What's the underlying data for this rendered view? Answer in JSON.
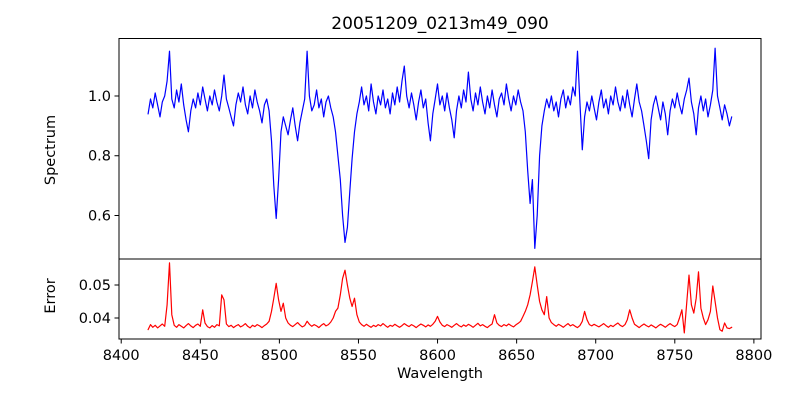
{
  "chart_data": {
    "type": "line",
    "title": "20051209_0213m49_090",
    "xlabel": "Wavelength",
    "xlim": [
      8398.6,
      8804.5
    ],
    "x_start": 8417,
    "x_step": 1.5,
    "xticks": {
      "values": [
        8400,
        8450,
        8500,
        8550,
        8600,
        8650,
        8700,
        8750,
        8800
      ],
      "labels": [
        "8400",
        "8450",
        "8500",
        "8550",
        "8600",
        "8650",
        "8700",
        "8750",
        "8800"
      ]
    },
    "grid": false,
    "legend": "none",
    "panels": [
      {
        "name": "spectrum",
        "ylabel": "Spectrum",
        "color": "#0000ff",
        "ylim": [
          0.4544,
          1.1924
        ],
        "yticks": {
          "values": [
            0.6,
            0.8,
            1.0
          ],
          "labels": [
            "0.6",
            "0.8",
            "1.0"
          ]
        },
        "features": "absorption lines near 8498, 8542, 8662; continuum ~1.0",
        "values": [
          0.94,
          0.99,
          0.96,
          1.01,
          0.97,
          0.93,
          0.98,
          1.0,
          1.05,
          1.15,
          0.99,
          0.96,
          1.02,
          0.98,
          1.04,
          0.97,
          0.92,
          0.88,
          0.95,
          0.99,
          0.96,
          1.01,
          0.97,
          1.03,
          0.99,
          0.95,
          1.0,
          0.97,
          1.02,
          0.98,
          0.95,
          1.0,
          1.07,
          0.99,
          0.96,
          0.93,
          0.9,
          0.97,
          1.01,
          0.98,
          1.03,
          0.97,
          0.94,
          1.0,
          0.96,
          1.02,
          0.98,
          0.95,
          0.91,
          0.97,
          0.99,
          0.95,
          0.85,
          0.7,
          0.59,
          0.72,
          0.88,
          0.93,
          0.9,
          0.87,
          0.92,
          0.96,
          0.9,
          0.85,
          0.91,
          0.95,
          0.99,
          1.15,
          1.0,
          0.95,
          0.97,
          1.02,
          0.96,
          0.99,
          0.93,
          0.98,
          1.0,
          0.96,
          0.93,
          0.88,
          0.8,
          0.72,
          0.6,
          0.51,
          0.56,
          0.68,
          0.79,
          0.88,
          0.94,
          0.98,
          1.03,
          0.97,
          1.0,
          0.95,
          1.04,
          0.98,
          0.94,
          1.0,
          0.97,
          1.02,
          0.96,
          0.99,
          0.94,
          1.01,
          0.97,
          1.03,
          0.98,
          1.05,
          1.1,
          1.0,
          0.96,
          1.01,
          0.97,
          0.92,
          0.98,
          1.02,
          0.96,
          0.99,
          0.91,
          0.85,
          0.94,
          0.99,
          1.04,
          0.97,
          1.0,
          0.95,
          1.01,
          0.96,
          0.92,
          0.86,
          0.95,
          1.0,
          0.96,
          1.02,
          0.98,
          1.08,
          0.99,
          0.95,
          1.01,
          0.97,
          1.03,
          0.98,
          0.94,
          1.0,
          0.96,
          1.02,
          0.97,
          0.93,
          0.99,
          1.01,
          0.97,
          1.04,
          0.99,
          0.95,
          1.0,
          0.97,
          1.02,
          0.98,
          0.95,
          0.88,
          0.75,
          0.64,
          0.72,
          0.49,
          0.6,
          0.8,
          0.9,
          0.95,
          0.99,
          0.96,
          1.0,
          0.95,
          0.98,
          0.93,
          0.99,
          1.02,
          0.96,
          1.0,
          0.97,
          1.03,
          1.0,
          1.15,
          0.98,
          0.82,
          0.93,
          0.98,
          0.95,
          1.0,
          0.96,
          0.92,
          0.98,
          1.02,
          0.96,
          0.99,
          0.94,
          1.0,
          0.97,
          1.03,
          0.98,
          0.95,
          1.0,
          0.96,
          1.02,
          0.97,
          0.93,
          0.99,
          1.04,
          0.98,
          0.95,
          0.9,
          0.85,
          0.79,
          0.92,
          0.97,
          1.0,
          0.96,
          0.92,
          0.98,
          0.94,
          0.87,
          0.95,
          0.99,
          0.96,
          1.01,
          0.97,
          0.94,
          0.99,
          1.02,
          1.06,
          0.98,
          0.94,
          0.87,
          0.96,
          1.0,
          0.95,
          0.99,
          0.93,
          0.97,
          1.02,
          1.16,
          1.0,
          0.96,
          0.92,
          0.97,
          0.94,
          0.9,
          0.93
        ]
      },
      {
        "name": "error",
        "ylabel": "Error",
        "color": "#ff0000",
        "ylim": [
          0.03364,
          0.05788
        ],
        "yticks": {
          "values": [
            0.04,
            0.05
          ],
          "labels": [
            "0.04",
            "0.05"
          ]
        },
        "features": "baseline ~0.038 with spikes near 8430, 8465, 8498, 8542, 8662, 8758-8776",
        "values": [
          0.0365,
          0.038,
          0.0372,
          0.0378,
          0.037,
          0.0376,
          0.0382,
          0.0375,
          0.044,
          0.0567,
          0.041,
          0.0378,
          0.0372,
          0.038,
          0.0375,
          0.037,
          0.0377,
          0.0383,
          0.0376,
          0.0371,
          0.0378,
          0.0382,
          0.0375,
          0.0425,
          0.0385,
          0.0374,
          0.037,
          0.0377,
          0.0372,
          0.038,
          0.0376,
          0.047,
          0.0455,
          0.0382,
          0.0374,
          0.0378,
          0.0371,
          0.0376,
          0.038,
          0.0373,
          0.0377,
          0.0383,
          0.0375,
          0.037,
          0.0378,
          0.0374,
          0.038,
          0.0376,
          0.0371,
          0.0377,
          0.0382,
          0.039,
          0.042,
          0.046,
          0.0505,
          0.0455,
          0.042,
          0.0445,
          0.04,
          0.0385,
          0.0378,
          0.0374,
          0.038,
          0.0386,
          0.0379,
          0.0373,
          0.0377,
          0.039,
          0.0381,
          0.0375,
          0.038,
          0.0376,
          0.0371,
          0.0378,
          0.0383,
          0.0376,
          0.038,
          0.0388,
          0.04,
          0.042,
          0.043,
          0.047,
          0.052,
          0.0545,
          0.05,
          0.046,
          0.0435,
          0.046,
          0.041,
          0.0388,
          0.038,
          0.0375,
          0.0381,
          0.0376,
          0.0372,
          0.0378,
          0.0374,
          0.038,
          0.0376,
          0.0383,
          0.0377,
          0.0372,
          0.0378,
          0.0375,
          0.0381,
          0.0376,
          0.0372,
          0.0377,
          0.0383,
          0.0378,
          0.0374,
          0.038,
          0.0376,
          0.0371,
          0.0377,
          0.0382,
          0.0378,
          0.0373,
          0.0379,
          0.0375,
          0.0381,
          0.039,
          0.0405,
          0.0388,
          0.0378,
          0.0374,
          0.038,
          0.0376,
          0.0372,
          0.0378,
          0.0383,
          0.0377,
          0.0373,
          0.0379,
          0.0375,
          0.0381,
          0.0377,
          0.0372,
          0.0378,
          0.0384,
          0.0376,
          0.038,
          0.0375,
          0.0371,
          0.0377,
          0.0382,
          0.041,
          0.0385,
          0.0378,
          0.0374,
          0.038,
          0.0376,
          0.0382,
          0.0377,
          0.0373,
          0.0379,
          0.0384,
          0.039,
          0.0405,
          0.042,
          0.044,
          0.047,
          0.051,
          0.0555,
          0.05,
          0.045,
          0.0425,
          0.041,
          0.0465,
          0.04,
          0.0386,
          0.038,
          0.0375,
          0.0381,
          0.0377,
          0.0372,
          0.0378,
          0.0383,
          0.0376,
          0.038,
          0.0375,
          0.0371,
          0.0377,
          0.039,
          0.042,
          0.0395,
          0.038,
          0.0376,
          0.0381,
          0.0377,
          0.0373,
          0.0378,
          0.0383,
          0.0377,
          0.0372,
          0.0378,
          0.0374,
          0.038,
          0.0385,
          0.0378,
          0.0374,
          0.038,
          0.0395,
          0.0425,
          0.04,
          0.0381,
          0.0376,
          0.0371,
          0.0377,
          0.0382,
          0.0377,
          0.0373,
          0.0379,
          0.0375,
          0.037,
          0.0376,
          0.0381,
          0.0377,
          0.0372,
          0.0378,
          0.0383,
          0.0378,
          0.0374,
          0.038,
          0.04,
          0.0425,
          0.0355,
          0.0445,
          0.053,
          0.044,
          0.0415,
          0.046,
          0.054,
          0.043,
          0.04,
          0.038,
          0.0395,
          0.042,
          0.0497,
          0.045,
          0.04,
          0.0365,
          0.036,
          0.0385,
          0.037,
          0.0368,
          0.0372
        ]
      }
    ]
  }
}
